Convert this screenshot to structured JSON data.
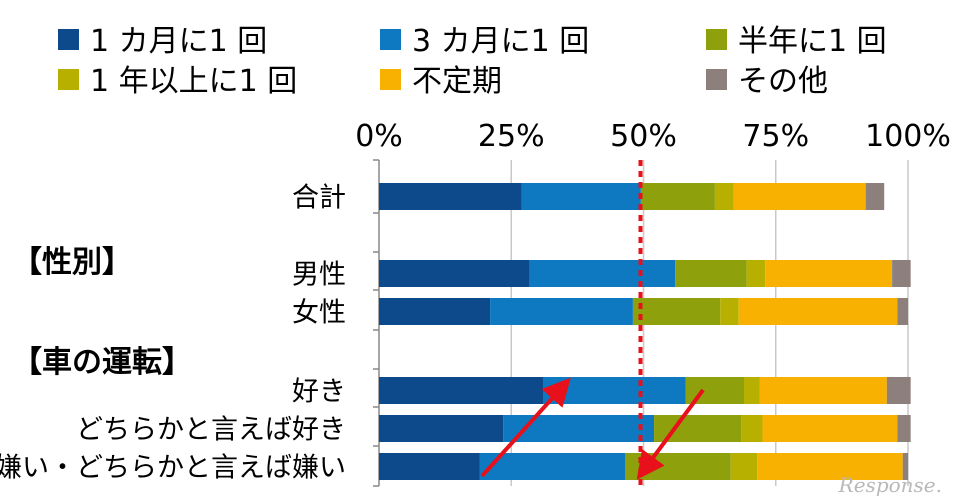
{
  "chart_data": {
    "type": "bar",
    "orientation": "horizontal",
    "stacked": true,
    "unit": "%",
    "xlim": [
      0,
      100
    ],
    "xticks": [
      "0%",
      "25%",
      "50%",
      "75%",
      "100%"
    ],
    "grid": true,
    "legend_position": "top",
    "reference_line": {
      "x": 50,
      "style": "dotted",
      "color": "#e8101a"
    },
    "categories": [
      "合計",
      "男性",
      "女性",
      "好き",
      "どちらかと言えば好き",
      "嫌い・どちらかと言えば嫌い"
    ],
    "groups": [
      {
        "label": "【性別】",
        "categories": [
          "男性",
          "女性"
        ]
      },
      {
        "label": "【車の運転】",
        "categories": [
          "好き",
          "どちらかと言えば好き",
          "嫌い・どちらかと言えば嫌い"
        ]
      }
    ],
    "series": [
      {
        "name": "1 カ月に1 回",
        "color": "#0c4a8c",
        "values": [
          27,
          28.5,
          21,
          31,
          23.5,
          19
        ]
      },
      {
        "name": "3 カ月に1 回",
        "color": "#0e79c0",
        "values": [
          22.5,
          27.5,
          27,
          27,
          28.5,
          27.5
        ]
      },
      {
        "name": "半年に1 回",
        "color": "#8ea00c",
        "values": [
          14,
          13.5,
          16.5,
          11,
          16.5,
          20
        ]
      },
      {
        "name": "1 年以上に1 回",
        "color": "#b7b000",
        "values": [
          3.5,
          3.5,
          3.5,
          3,
          4,
          5
        ]
      },
      {
        "name": "不定期",
        "color": "#f8b100",
        "values": [
          25,
          24,
          30,
          24,
          25.5,
          27.5
        ]
      },
      {
        "name": "その他",
        "color": "#8c7f7c",
        "values": [
          3.5,
          3.5,
          2,
          4.5,
          2.5,
          1
        ]
      }
    ]
  },
  "watermark": "Response."
}
